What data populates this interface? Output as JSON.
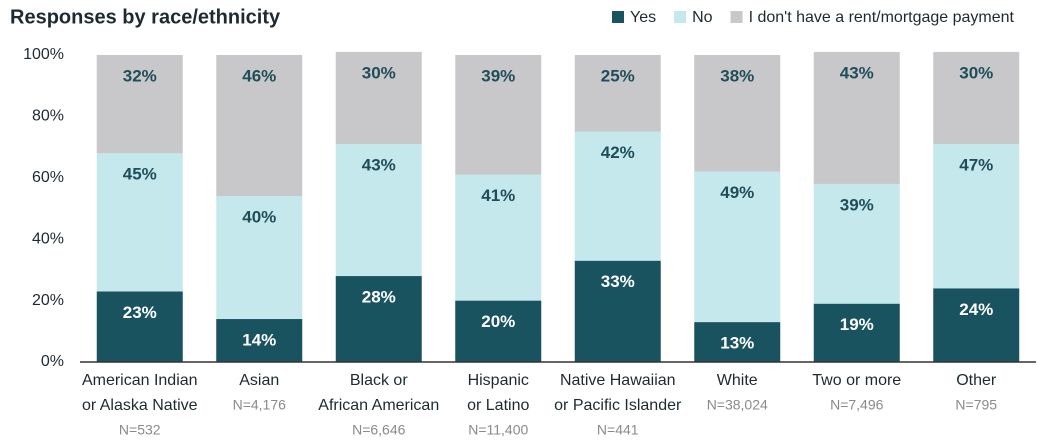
{
  "chart_data": {
    "type": "stacked_bar",
    "title": "Responses by race/ethnicity",
    "categories": [
      [
        "American Indian",
        "or Alaska Native"
      ],
      [
        "Asian"
      ],
      [
        "Black or",
        "African American"
      ],
      [
        "Hispanic",
        "or Latino"
      ],
      [
        "Native Hawaiian",
        "or Pacific Islander"
      ],
      [
        "White"
      ],
      [
        "Two or more"
      ],
      [
        "Other"
      ]
    ],
    "sample_sizes": [
      "N=532",
      "N=4,176",
      "N=6,646",
      "N=11,400",
      "N=441",
      "N=38,024",
      "N=7,496",
      "N=795"
    ],
    "series": [
      {
        "name": "Yes",
        "color": "#1a5360",
        "values": [
          23,
          14,
          28,
          20,
          33,
          13,
          19,
          24
        ],
        "value_labels": [
          "23%",
          "14%",
          "28%",
          "20%",
          "33%",
          "13%",
          "19%",
          "24%"
        ]
      },
      {
        "name": "No",
        "color": "#c5e8ec",
        "values": [
          45,
          40,
          43,
          41,
          42,
          49,
          39,
          47
        ],
        "value_labels": [
          "45%",
          "40%",
          "43%",
          "41%",
          "42%",
          "49%",
          "39%",
          "47%"
        ]
      },
      {
        "name": "I don't have a rent/mortgage payment",
        "color": "#c8c8ca",
        "values": [
          32,
          46,
          30,
          39,
          25,
          38,
          43,
          30
        ],
        "value_labels": [
          "32%",
          "46%",
          "30%",
          "39%",
          "25%",
          "38%",
          "43%",
          "30%"
        ]
      }
    ],
    "ylim": [
      0,
      100
    ],
    "yticks": [
      {
        "value": 0,
        "label": "0%"
      },
      {
        "value": 20,
        "label": "20%"
      },
      {
        "value": 40,
        "label": "40%"
      },
      {
        "value": 60,
        "label": "60%"
      },
      {
        "value": 80,
        "label": "80%"
      },
      {
        "value": 100,
        "label": "100%"
      }
    ],
    "legend": "top-right"
  }
}
